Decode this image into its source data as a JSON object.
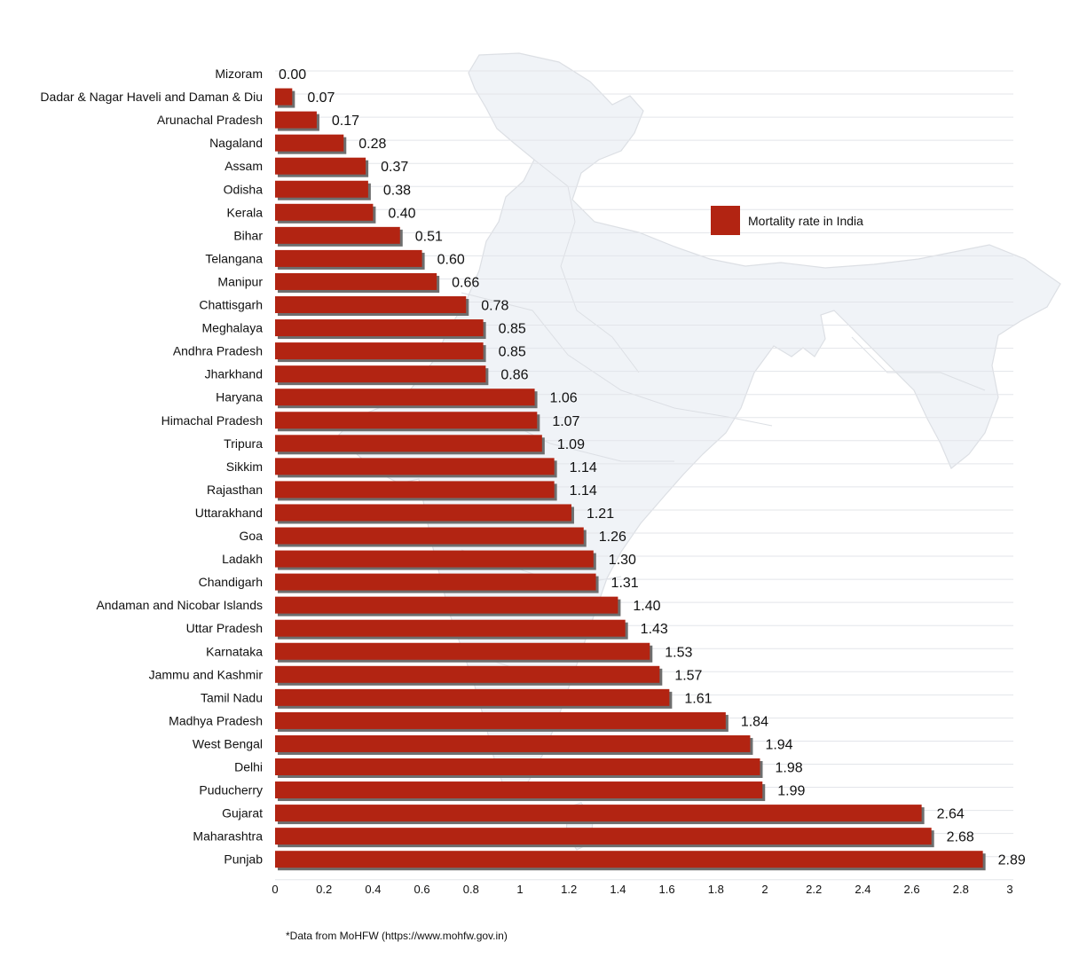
{
  "chart_data": {
    "type": "bar",
    "orientation": "horizontal",
    "categories": [
      "Mizoram",
      "Dadar & Nagar Haveli and Daman & Diu",
      "Arunachal Pradesh",
      "Nagaland",
      "Assam",
      "Odisha",
      "Kerala",
      "Bihar",
      "Telangana",
      "Manipur",
      "Chattisgarh",
      "Meghalaya",
      "Andhra Pradesh",
      "Jharkhand",
      "Haryana",
      "Himachal Pradesh",
      "Tripura",
      "Sikkim",
      "Rajasthan",
      "Uttarakhand",
      "Goa",
      "Ladakh",
      "Chandigarh",
      "Andaman and Nicobar Islands",
      "Uttar Pradesh",
      "Karnataka",
      "Jammu and Kashmir",
      "Tamil Nadu",
      "Madhya Pradesh",
      "West Bengal",
      "Delhi",
      "Puducherry",
      "Gujarat",
      "Maharashtra",
      "Punjab"
    ],
    "values": [
      0.0,
      0.07,
      0.17,
      0.28,
      0.37,
      0.38,
      0.4,
      0.51,
      0.6,
      0.66,
      0.78,
      0.85,
      0.85,
      0.86,
      1.06,
      1.07,
      1.09,
      1.14,
      1.14,
      1.21,
      1.26,
      1.3,
      1.31,
      1.4,
      1.43,
      1.53,
      1.57,
      1.61,
      1.84,
      1.94,
      1.98,
      1.99,
      2.64,
      2.68,
      2.89
    ],
    "value_labels": [
      "0.00",
      "0.07",
      "0.17",
      "0.28",
      "0.37",
      "0.38",
      "0.40",
      "0.51",
      "0.60",
      "0.66",
      "0.78",
      "0.85",
      "0.85",
      "0.86",
      "1.06",
      "1.07",
      "1.09",
      "1.14",
      "1.14",
      "1.21",
      "1.26",
      "1.30",
      "1.31",
      "1.40",
      "1.43",
      "1.53",
      "1.57",
      "1.61",
      "1.84",
      "1.94",
      "1.98",
      "1.99",
      "2.64",
      "2.68",
      "2.89"
    ],
    "series": [
      {
        "name": "Mortality rate in India",
        "color": "#b22412"
      }
    ],
    "xlim": [
      0,
      3
    ],
    "xticks": [
      "0",
      "0.2",
      "0.4",
      "0.6",
      "0.8",
      "1",
      "1.2",
      "1.4",
      "1.6",
      "1.8",
      "2",
      "2.2",
      "2.4",
      "2.6",
      "2.8",
      "3"
    ],
    "grid": true,
    "legend_position": "right",
    "title": "",
    "xlabel": "",
    "ylabel": "",
    "background": "outline map of India (decorative)"
  },
  "footnote": "*Data from MoHFW (https://www.mohfw.gov.in)",
  "colors": {
    "bar": "#b22412",
    "bar_shadow": "#6e6e6e",
    "grid": "#e3e5ea",
    "map_fill": "#f0f3f7",
    "map_stroke": "#dcdfe4"
  }
}
